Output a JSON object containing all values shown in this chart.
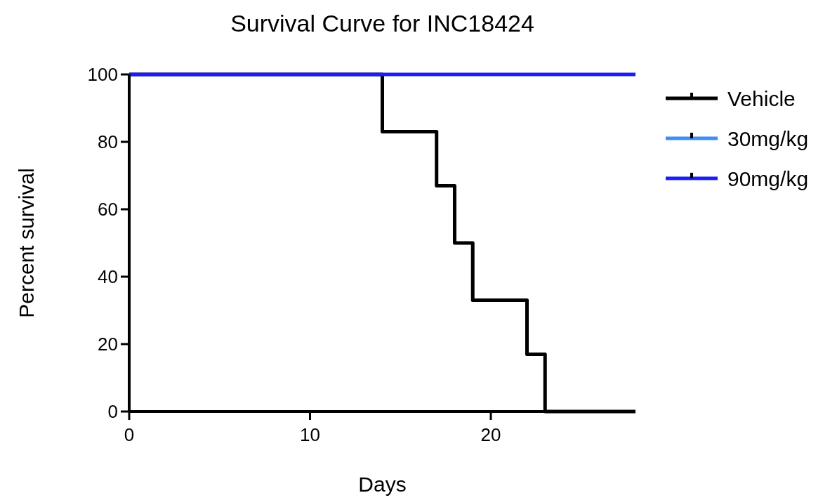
{
  "chart_data": {
    "type": "step",
    "title": "Survival Curve for INC18424",
    "xlabel": "Days",
    "ylabel": "Percent survival",
    "xlim": [
      0,
      28
    ],
    "xticks": [
      0,
      10,
      20
    ],
    "ylim": [
      0,
      100
    ],
    "yticks": [
      0,
      20,
      40,
      60,
      80,
      100
    ],
    "grid": false,
    "legend": "right",
    "marker": "none",
    "line_style": "solid",
    "series": [
      {
        "name": "Vehicle",
        "color": "#000000",
        "x": [
          0,
          14,
          17,
          18,
          19,
          22,
          23,
          28
        ],
        "values": [
          100,
          83,
          67,
          50,
          33,
          17,
          0,
          0
        ]
      },
      {
        "name": "30mg/kg",
        "color": "#3f8ef5"
      },
      {
        "name": "90mg/kg",
        "color": "#1a1ef5",
        "x": [
          0,
          28
        ],
        "values": [
          100,
          100
        ]
      }
    ]
  }
}
